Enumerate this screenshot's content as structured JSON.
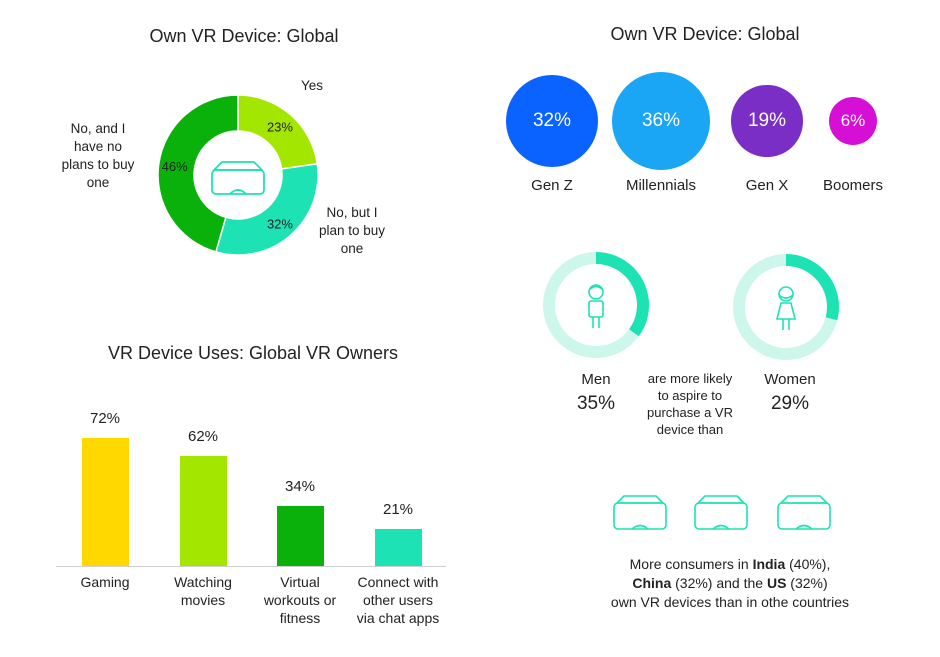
{
  "colors": {
    "dark_green": "#0ab10a",
    "lime": "#a3e600",
    "teal": "#1de3b4",
    "mint": "#ccf7ea",
    "yellow": "#ffd800",
    "blue1": "#0a63ff",
    "blue2": "#1aa6f5",
    "purple": "#7b2ec6",
    "magenta": "#d50fd5"
  },
  "donut": {
    "title": "Own VR Device: Global",
    "icon": "vr-headset-icon"
  },
  "generations": {
    "title": "Own VR Device: Global"
  },
  "gender": {
    "men_label": "Men",
    "men_value": "35%",
    "women_label": "Women",
    "women_value": "29%",
    "middle_text": [
      "are more likely",
      "to aspire to",
      "purchase a VR",
      "device than"
    ]
  },
  "uses": {
    "title": "VR Device Uses: Global VR Owners"
  },
  "countries": {
    "icon": "vr-headset-icon",
    "line1_a": "More consumers in ",
    "line1_b": "India",
    "line1_c": " (40%),",
    "line2_a": "China",
    "line2_b": " (32%) and the ",
    "line2_c": "US",
    "line2_d": " (32%)",
    "line3": "own VR devices than in othe countries"
  },
  "chart_data": [
    {
      "type": "pie",
      "title": "Own VR Device: Global",
      "slices": [
        {
          "label": "Yes",
          "value": 23,
          "value_label": "23%"
        },
        {
          "label": "No, but I plan to buy one",
          "label_lines": [
            "No, but I",
            "plan to buy",
            "one"
          ],
          "value": 32,
          "value_label": "32%"
        },
        {
          "label": "No, and I have no plans to buy one",
          "label_lines": [
            "No, and I",
            "have no",
            "plans to buy",
            "one"
          ],
          "value": 46,
          "value_label": "46%"
        }
      ]
    },
    {
      "type": "bar",
      "title": "Own VR Device: Global",
      "categories": [
        "Gen Z",
        "Millennials",
        "Gen X",
        "Boomers"
      ],
      "values": [
        32,
        36,
        19,
        6
      ],
      "value_labels": [
        "32%",
        "36%",
        "19%",
        "6%"
      ]
    },
    {
      "type": "pie",
      "title": "",
      "categories": [
        "Men",
        "Women"
      ],
      "values": [
        35,
        29
      ]
    },
    {
      "type": "bar",
      "title": "VR Device Uses: Global VR Owners",
      "categories": [
        "Gaming",
        "Watching movies",
        "Virtual workouts or fitness",
        "Connect with other users via chat apps"
      ],
      "category_lines": [
        [
          "Gaming"
        ],
        [
          "Watching",
          "movies"
        ],
        [
          "Virtual",
          "workouts or",
          "fitness"
        ],
        [
          "Connect with",
          "other users",
          "via chat apps"
        ]
      ],
      "values": [
        72,
        62,
        34,
        21
      ],
      "value_labels": [
        "72%",
        "62%",
        "34%",
        "21%"
      ],
      "ylim": [
        0,
        100
      ]
    }
  ]
}
